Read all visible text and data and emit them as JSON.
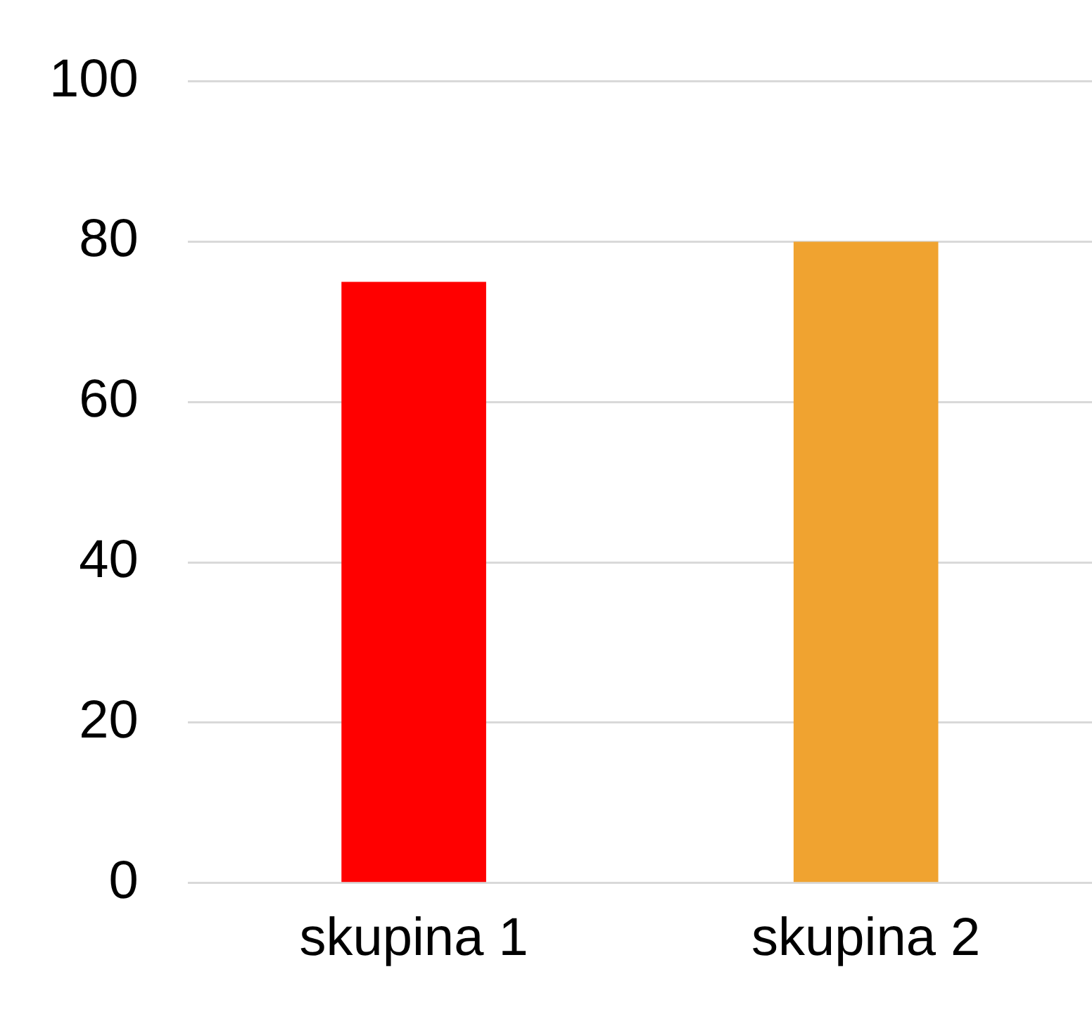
{
  "chart_data": {
    "type": "bar",
    "categories": [
      "skupina 1",
      "skupina 2"
    ],
    "values": [
      75,
      80
    ],
    "colors": [
      "#ff0000",
      "#f0a330"
    ],
    "ylim": [
      0,
      100
    ],
    "yticks": [
      0,
      20,
      40,
      60,
      80,
      100
    ],
    "grid": "y",
    "legend": false
  }
}
